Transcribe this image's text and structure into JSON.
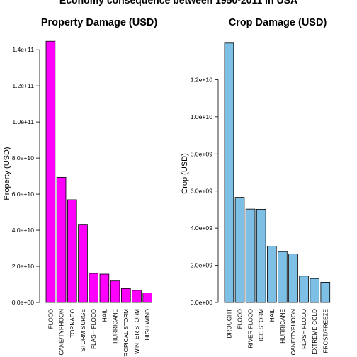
{
  "figure": {
    "title": "Economy consequence between 1950-2011 in USA"
  },
  "chart_data": [
    {
      "type": "bar",
      "title": "Property Damage (USD)",
      "xlabel": "",
      "ylabel": "Property (USD)",
      "color": "#FF00FF",
      "ylim": [
        0,
        144000000000
      ],
      "yticks": [
        0,
        20000000000,
        40000000000,
        60000000000,
        80000000000,
        100000000000,
        120000000000,
        140000000000
      ],
      "ytick_labels": [
        "0.0e+00",
        "2.0e+10",
        "4.0e+10",
        "6.0e+10",
        "8.0e+10",
        "1.0e+11",
        "1.2e+11",
        "1.4e+11"
      ],
      "categories": [
        "FLOOD",
        "HURRICANE/TYPHOON",
        "TORNADO",
        "STORM SURGE",
        "FLASH FLOOD",
        "HAIL",
        "HURRICANE",
        "TROPICAL STORM",
        "WINTER STORM",
        "HIGH WIND"
      ],
      "values": [
        144700000000,
        69300000000,
        56900000000,
        43300000000,
        16100000000,
        15700000000,
        11900000000,
        7700000000,
        6700000000,
        5300000000
      ]
    },
    {
      "type": "bar",
      "title": "Crop Damage (USD)",
      "xlabel": "",
      "ylabel": "Crop (USD)",
      "color": "#7EC0E5",
      "ylim": [
        0,
        14000000000
      ],
      "yticks": [
        0,
        2000000000,
        4000000000,
        6000000000,
        8000000000,
        10000000000,
        12000000000
      ],
      "ytick_labels": [
        "0.0e+00",
        "2.0e+09",
        "4.0e+09",
        "6.0e+09",
        "8.0e+09",
        "1.0e+10",
        "1.2e+10"
      ],
      "categories": [
        "DROUGHT",
        "FLOOD",
        "RIVER FLOOD",
        "ICE STORM",
        "HAIL",
        "HURRICANE",
        "HURRICANE/TYPHOON",
        "FLASH FLOOD",
        "EXTREME COLD",
        "FROST/FREEZE"
      ],
      "values": [
        13970000000,
        5660000000,
        5030000000,
        5020000000,
        3030000000,
        2740000000,
        2610000000,
        1420000000,
        1290000000,
        1090000000
      ]
    }
  ]
}
